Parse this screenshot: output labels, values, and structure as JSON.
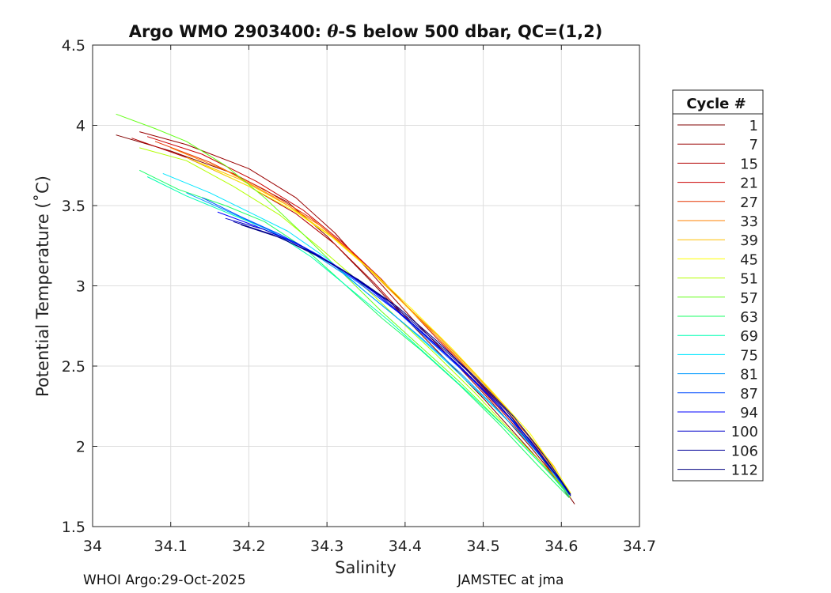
{
  "chart_data": {
    "type": "line",
    "title_main": "Argo WMO 2903400: ",
    "title_theta": "θ",
    "title_rest": "-S below 500 dbar,  QC=(1,2)",
    "xlabel": "Salinity",
    "ylabel": "Potential Temperature (˚C)",
    "xlim": [
      34.0,
      34.7
    ],
    "ylim": [
      1.5,
      4.5
    ],
    "xticks": [
      34.0,
      34.1,
      34.2,
      34.3,
      34.4,
      34.5,
      34.6,
      34.7
    ],
    "xtick_labels": [
      "34",
      "34.1",
      "34.2",
      "34.3",
      "34.4",
      "34.5",
      "34.6",
      "34.7"
    ],
    "yticks": [
      1.5,
      2.0,
      2.5,
      3.0,
      3.5,
      4.0,
      4.5
    ],
    "ytick_labels": [
      "1.5",
      "2",
      "2.5",
      "3",
      "3.5",
      "4",
      "4.5"
    ],
    "grid": true,
    "legend": {
      "title": "Cycle #",
      "placement": "right",
      "entries": [
        {
          "label": "1",
          "color": "#800000"
        },
        {
          "label": "7",
          "color": "#990000"
        },
        {
          "label": "15",
          "color": "#b30000"
        },
        {
          "label": "21",
          "color": "#cc0000"
        },
        {
          "label": "27",
          "color": "#e63300"
        },
        {
          "label": "33",
          "color": "#ff8000"
        },
        {
          "label": "39",
          "color": "#ffbf00"
        },
        {
          "label": "45",
          "color": "#ffff00"
        },
        {
          "label": "51",
          "color": "#b3ff00"
        },
        {
          "label": "57",
          "color": "#66ff1a"
        },
        {
          "label": "63",
          "color": "#1aff66"
        },
        {
          "label": "69",
          "color": "#00ffb3"
        },
        {
          "label": "75",
          "color": "#00e6ff"
        },
        {
          "label": "81",
          "color": "#0099ff"
        },
        {
          "label": "87",
          "color": "#004dff"
        },
        {
          "label": "94",
          "color": "#0000ff"
        },
        {
          "label": "100",
          "color": "#0000cc"
        },
        {
          "label": "106",
          "color": "#000099"
        },
        {
          "label": "112",
          "color": "#000080"
        }
      ]
    },
    "series": [
      {
        "name": "1",
        "color": "#800000",
        "points": [
          [
            34.03,
            3.94
          ],
          [
            34.1,
            3.84
          ],
          [
            34.18,
            3.7
          ],
          [
            34.25,
            3.52
          ],
          [
            34.3,
            3.31
          ],
          [
            34.35,
            3.06
          ],
          [
            34.4,
            2.8
          ],
          [
            34.45,
            2.55
          ],
          [
            34.5,
            2.3
          ],
          [
            34.55,
            2.03
          ],
          [
            34.6,
            1.76
          ],
          [
            34.617,
            1.64
          ]
        ]
      },
      {
        "name": "7",
        "color": "#990000",
        "points": [
          [
            34.06,
            3.96
          ],
          [
            34.12,
            3.88
          ],
          [
            34.2,
            3.73
          ],
          [
            34.26,
            3.55
          ],
          [
            34.31,
            3.33
          ],
          [
            34.36,
            3.06
          ],
          [
            34.41,
            2.79
          ],
          [
            34.46,
            2.54
          ],
          [
            34.51,
            2.28
          ],
          [
            34.56,
            2.0
          ],
          [
            34.61,
            1.7
          ]
        ]
      },
      {
        "name": "15",
        "color": "#b30000",
        "points": [
          [
            34.05,
            3.92
          ],
          [
            34.12,
            3.8
          ],
          [
            34.2,
            3.62
          ],
          [
            34.26,
            3.45
          ],
          [
            34.31,
            3.26
          ],
          [
            34.36,
            3.02
          ],
          [
            34.41,
            2.76
          ],
          [
            34.47,
            2.5
          ],
          [
            34.52,
            2.24
          ],
          [
            34.57,
            1.96
          ],
          [
            34.61,
            1.68
          ]
        ]
      },
      {
        "name": "21",
        "color": "#cc0000",
        "points": [
          [
            34.07,
            3.93
          ],
          [
            34.14,
            3.82
          ],
          [
            34.21,
            3.65
          ],
          [
            34.27,
            3.47
          ],
          [
            34.32,
            3.27
          ],
          [
            34.37,
            3.04
          ],
          [
            34.42,
            2.78
          ],
          [
            34.47,
            2.52
          ],
          [
            34.52,
            2.26
          ],
          [
            34.57,
            1.98
          ],
          [
            34.61,
            1.69
          ]
        ]
      },
      {
        "name": "27",
        "color": "#e63300",
        "points": [
          [
            34.08,
            3.9
          ],
          [
            34.15,
            3.77
          ],
          [
            34.22,
            3.6
          ],
          [
            34.28,
            3.42
          ],
          [
            34.33,
            3.22
          ],
          [
            34.38,
            2.98
          ],
          [
            34.43,
            2.74
          ],
          [
            34.48,
            2.48
          ],
          [
            34.53,
            2.22
          ],
          [
            34.58,
            1.94
          ],
          [
            34.61,
            1.7
          ]
        ]
      },
      {
        "name": "33",
        "color": "#ff8000",
        "points": [
          [
            34.1,
            3.86
          ],
          [
            34.17,
            3.72
          ],
          [
            34.23,
            3.56
          ],
          [
            34.29,
            3.38
          ],
          [
            34.34,
            3.17
          ],
          [
            34.39,
            2.93
          ],
          [
            34.44,
            2.7
          ],
          [
            34.49,
            2.45
          ],
          [
            34.54,
            2.18
          ],
          [
            34.58,
            1.92
          ],
          [
            34.61,
            1.7
          ]
        ]
      },
      {
        "name": "39",
        "color": "#ffbf00",
        "points": [
          [
            34.12,
            3.8
          ],
          [
            34.19,
            3.66
          ],
          [
            34.25,
            3.5
          ],
          [
            34.3,
            3.33
          ],
          [
            34.35,
            3.12
          ],
          [
            34.4,
            2.88
          ],
          [
            34.45,
            2.64
          ],
          [
            34.5,
            2.39
          ],
          [
            34.55,
            2.12
          ],
          [
            34.59,
            1.88
          ],
          [
            34.612,
            1.7
          ]
        ]
      },
      {
        "name": "45",
        "color": "#ffff00",
        "points": [
          [
            34.13,
            3.78
          ],
          [
            34.2,
            3.62
          ],
          [
            34.26,
            3.46
          ],
          [
            34.31,
            3.29
          ],
          [
            34.36,
            3.08
          ],
          [
            34.41,
            2.85
          ],
          [
            34.46,
            2.61
          ],
          [
            34.51,
            2.35
          ],
          [
            34.56,
            2.08
          ],
          [
            34.59,
            1.87
          ],
          [
            34.612,
            1.71
          ]
        ]
      },
      {
        "name": "51",
        "color": "#b3ff00",
        "points": [
          [
            34.06,
            3.86
          ],
          [
            34.12,
            3.78
          ],
          [
            34.18,
            3.62
          ],
          [
            34.24,
            3.44
          ],
          [
            34.29,
            3.24
          ],
          [
            34.34,
            3.03
          ],
          [
            34.39,
            2.8
          ],
          [
            34.44,
            2.57
          ],
          [
            34.49,
            2.33
          ],
          [
            34.54,
            2.07
          ],
          [
            34.59,
            1.82
          ],
          [
            34.612,
            1.68
          ]
        ]
      },
      {
        "name": "57",
        "color": "#66ff1a",
        "points": [
          [
            34.03,
            4.07
          ],
          [
            34.08,
            3.98
          ],
          [
            34.12,
            3.9
          ],
          [
            34.17,
            3.75
          ],
          [
            34.22,
            3.55
          ],
          [
            34.27,
            3.32
          ],
          [
            34.32,
            3.08
          ],
          [
            34.37,
            2.84
          ],
          [
            34.42,
            2.62
          ],
          [
            34.47,
            2.4
          ],
          [
            34.52,
            2.16
          ],
          [
            34.57,
            1.91
          ],
          [
            34.61,
            1.7
          ]
        ]
      },
      {
        "name": "63",
        "color": "#1aff66",
        "points": [
          [
            34.06,
            3.72
          ],
          [
            34.11,
            3.6
          ],
          [
            34.17,
            3.5
          ],
          [
            34.22,
            3.4
          ],
          [
            34.27,
            3.24
          ],
          [
            34.32,
            3.02
          ],
          [
            34.37,
            2.8
          ],
          [
            34.42,
            2.6
          ],
          [
            34.47,
            2.38
          ],
          [
            34.52,
            2.14
          ],
          [
            34.57,
            1.88
          ],
          [
            34.61,
            1.68
          ]
        ]
      },
      {
        "name": "69",
        "color": "#00ffb3",
        "points": [
          [
            34.07,
            3.68
          ],
          [
            34.12,
            3.56
          ],
          [
            34.18,
            3.44
          ],
          [
            34.23,
            3.34
          ],
          [
            34.28,
            3.18
          ],
          [
            34.33,
            2.98
          ],
          [
            34.38,
            2.78
          ],
          [
            34.43,
            2.56
          ],
          [
            34.48,
            2.34
          ],
          [
            34.53,
            2.11
          ],
          [
            34.58,
            1.86
          ],
          [
            34.61,
            1.69
          ]
        ]
      },
      {
        "name": "75",
        "color": "#00e6ff",
        "points": [
          [
            34.09,
            3.7
          ],
          [
            34.15,
            3.58
          ],
          [
            34.2,
            3.46
          ],
          [
            34.25,
            3.34
          ],
          [
            34.3,
            3.17
          ],
          [
            34.35,
            2.96
          ],
          [
            34.4,
            2.76
          ],
          [
            34.45,
            2.54
          ],
          [
            34.5,
            2.31
          ],
          [
            34.55,
            2.07
          ],
          [
            34.59,
            1.84
          ],
          [
            34.61,
            1.7
          ]
        ]
      },
      {
        "name": "81",
        "color": "#0099ff",
        "points": [
          [
            34.12,
            3.58
          ],
          [
            34.17,
            3.47
          ],
          [
            34.22,
            3.36
          ],
          [
            34.27,
            3.24
          ],
          [
            34.32,
            3.08
          ],
          [
            34.37,
            2.88
          ],
          [
            34.42,
            2.68
          ],
          [
            34.47,
            2.46
          ],
          [
            34.52,
            2.22
          ],
          [
            34.57,
            1.96
          ],
          [
            34.61,
            1.7
          ]
        ]
      },
      {
        "name": "87",
        "color": "#004dff",
        "points": [
          [
            34.14,
            3.55
          ],
          [
            34.19,
            3.43
          ],
          [
            34.24,
            3.32
          ],
          [
            34.29,
            3.19
          ],
          [
            34.34,
            3.02
          ],
          [
            34.39,
            2.84
          ],
          [
            34.44,
            2.62
          ],
          [
            34.49,
            2.4
          ],
          [
            34.54,
            2.15
          ],
          [
            34.58,
            1.91
          ],
          [
            34.61,
            1.7
          ]
        ]
      },
      {
        "name": "94",
        "color": "#0000ff",
        "points": [
          [
            34.16,
            3.46
          ],
          [
            34.21,
            3.37
          ],
          [
            34.26,
            3.27
          ],
          [
            34.31,
            3.13
          ],
          [
            34.36,
            2.96
          ],
          [
            34.41,
            2.76
          ],
          [
            34.46,
            2.54
          ],
          [
            34.51,
            2.3
          ],
          [
            34.56,
            2.04
          ],
          [
            34.6,
            1.78
          ],
          [
            34.612,
            1.69
          ]
        ]
      },
      {
        "name": "100",
        "color": "#0000cc",
        "points": [
          [
            34.17,
            3.42
          ],
          [
            34.22,
            3.35
          ],
          [
            34.27,
            3.24
          ],
          [
            34.32,
            3.1
          ],
          [
            34.37,
            2.93
          ],
          [
            34.42,
            2.72
          ],
          [
            34.47,
            2.5
          ],
          [
            34.52,
            2.26
          ],
          [
            34.56,
            2.02
          ],
          [
            34.6,
            1.78
          ],
          [
            34.612,
            1.7
          ]
        ]
      },
      {
        "name": "106",
        "color": "#000099",
        "points": [
          [
            34.18,
            3.4
          ],
          [
            34.23,
            3.32
          ],
          [
            34.28,
            3.21
          ],
          [
            34.33,
            3.07
          ],
          [
            34.38,
            2.9
          ],
          [
            34.43,
            2.69
          ],
          [
            34.48,
            2.47
          ],
          [
            34.53,
            2.22
          ],
          [
            34.57,
            1.97
          ],
          [
            34.6,
            1.78
          ],
          [
            34.612,
            1.69
          ]
        ]
      },
      {
        "name": "112",
        "color": "#000080",
        "points": [
          [
            34.19,
            3.38
          ],
          [
            34.24,
            3.3
          ],
          [
            34.29,
            3.18
          ],
          [
            34.34,
            3.04
          ],
          [
            34.39,
            2.87
          ],
          [
            34.44,
            2.66
          ],
          [
            34.49,
            2.43
          ],
          [
            34.54,
            2.18
          ],
          [
            34.58,
            1.93
          ],
          [
            34.612,
            1.7
          ]
        ]
      }
    ]
  },
  "footer": {
    "left": "WHOI Argo:29-Oct-2025",
    "right": "JAMSTEC at jma"
  }
}
